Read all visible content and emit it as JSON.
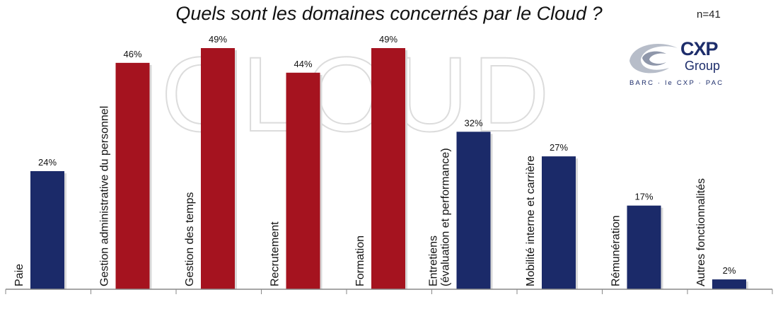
{
  "chart_data": {
    "type": "bar",
    "title": "Quels sont les domaines concernés par le Cloud ?",
    "categories": [
      [
        "Paie"
      ],
      [
        "Gestion administrative du personnel"
      ],
      [
        "Gestion des temps"
      ],
      [
        "Recrutement"
      ],
      [
        "Formation"
      ],
      [
        "Entretiens",
        "(évaluation et performance)"
      ],
      [
        "Mobilité interne et carrière"
      ],
      [
        "Rémunération"
      ],
      [
        "Autres fonctionnalités"
      ]
    ],
    "values": [
      24,
      46,
      49,
      44,
      49,
      32,
      27,
      17,
      2
    ],
    "value_labels": [
      "24%",
      "46%",
      "49%",
      "44%",
      "49%",
      "32%",
      "27%",
      "17%",
      "2%"
    ],
    "highlighted": [
      false,
      true,
      true,
      true,
      true,
      false,
      false,
      false,
      false
    ],
    "ylim": [
      0,
      49
    ],
    "grid": false,
    "colors": {
      "highlight": "#a5131f",
      "default": "#1b2a69"
    }
  },
  "sample_size": "n=41",
  "watermark": "CLOUD",
  "logo": {
    "name": "CXP",
    "sub": "Group",
    "tagline": "BARC · le CXP · PAC",
    "color": "#1d2d6b"
  }
}
